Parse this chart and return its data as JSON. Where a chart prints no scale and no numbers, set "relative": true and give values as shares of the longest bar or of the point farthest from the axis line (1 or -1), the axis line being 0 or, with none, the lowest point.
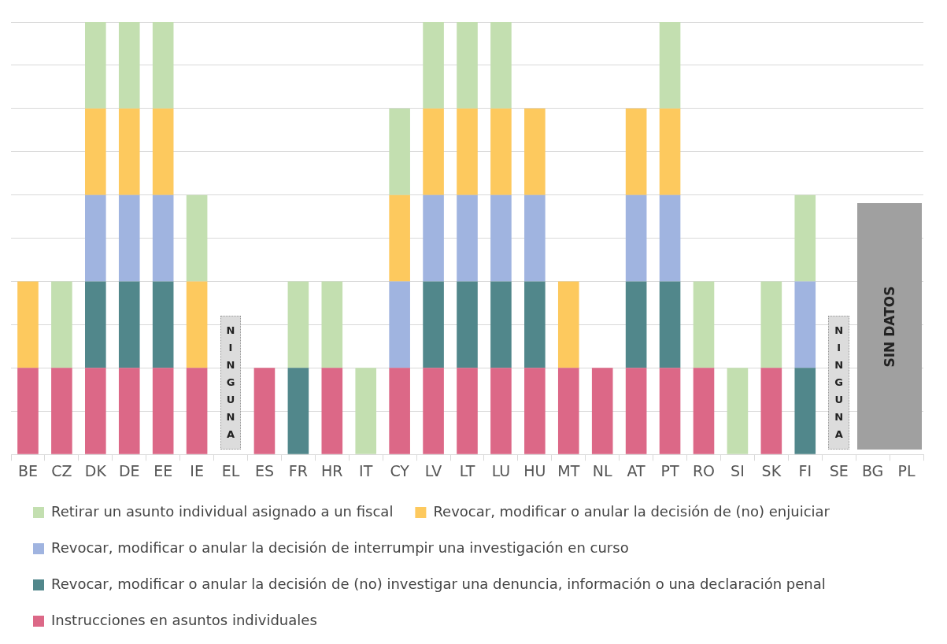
{
  "chart_data": {
    "type": "bar",
    "stacked": true,
    "relative": true,
    "grid": "y",
    "legend": "bottom",
    "categories": [
      "BE",
      "CZ",
      "DK",
      "DE",
      "EE",
      "IE",
      "EL",
      "ES",
      "FR",
      "HR",
      "IT",
      "CY",
      "LV",
      "LT",
      "LU",
      "HU",
      "MT",
      "NL",
      "AT",
      "PT",
      "RO",
      "SI",
      "SK",
      "FI",
      "SE",
      "BG",
      "PL"
    ],
    "series": [
      {
        "name": "Instrucciones en asuntos individuales",
        "color": "#dc6887",
        "values": [
          0.2,
          0.2,
          0.2,
          0.2,
          0.2,
          0.2,
          null,
          0.2,
          null,
          0.2,
          null,
          0.2,
          0.2,
          0.2,
          0.2,
          0.2,
          0.2,
          0.2,
          0.2,
          0.2,
          0.2,
          null,
          0.2,
          null,
          null,
          null,
          null
        ]
      },
      {
        "name": "Revocar, modificar o anular la decisión de (no) investigar una denuncia, información o una declaración penal",
        "color": "#51878b",
        "values": [
          null,
          null,
          0.2,
          0.2,
          0.2,
          null,
          null,
          null,
          0.2,
          null,
          null,
          null,
          0.2,
          0.2,
          0.2,
          0.2,
          null,
          null,
          0.2,
          0.2,
          null,
          null,
          null,
          0.2,
          null,
          null,
          null
        ]
      },
      {
        "name": "Revocar, modificar o anular la decisión de interrumpir una investigación en curso",
        "color": "#a0b4e0",
        "values": [
          null,
          null,
          0.2,
          0.2,
          0.2,
          null,
          null,
          null,
          null,
          null,
          null,
          0.2,
          0.2,
          0.2,
          0.2,
          0.2,
          null,
          null,
          0.2,
          0.2,
          null,
          null,
          null,
          0.2,
          null,
          null,
          null
        ]
      },
      {
        "name": "Revocar, modificar o anular la decisión de (no) enjuiciar",
        "color": "#fdc95e",
        "values": [
          0.2,
          null,
          0.2,
          0.2,
          0.2,
          0.2,
          null,
          null,
          null,
          null,
          null,
          0.2,
          0.2,
          0.2,
          0.2,
          0.2,
          0.2,
          null,
          0.2,
          0.2,
          null,
          null,
          null,
          null,
          null,
          null,
          null
        ]
      },
      {
        "name": "Retirar un asunto individual asignado a un fiscal",
        "color": "#c3dfb0",
        "values": [
          null,
          0.2,
          0.2,
          0.2,
          0.2,
          0.2,
          null,
          null,
          0.2,
          0.2,
          0.2,
          0.2,
          0.2,
          0.2,
          0.2,
          null,
          null,
          null,
          null,
          0.2,
          0.2,
          0.2,
          0.2,
          0.2,
          null,
          null,
          null
        ]
      }
    ],
    "annotations": [
      "NINGUNA",
      "NINGUNA",
      "SIN DATOS"
    ]
  }
}
